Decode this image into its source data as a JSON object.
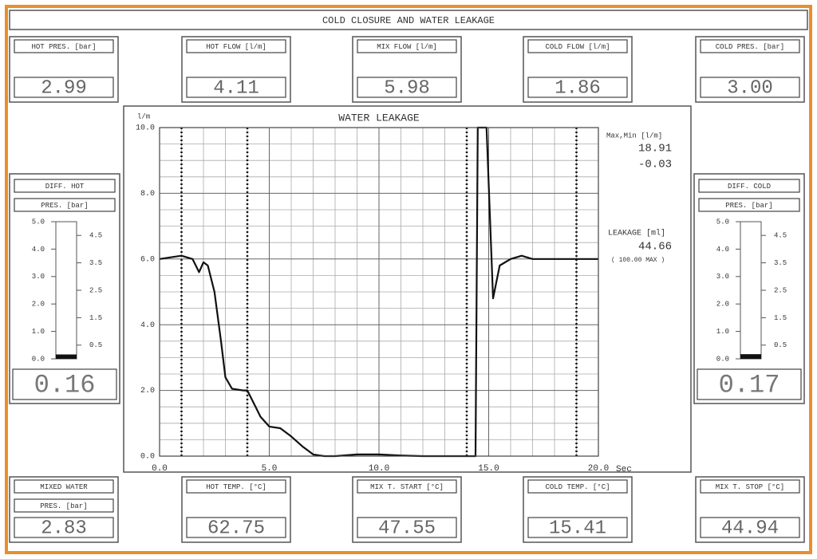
{
  "header": {
    "title": "COLD CLOSURE AND WATER LEAKAGE"
  },
  "top_readouts": [
    {
      "labels": [
        "HOT PRES. [bar]"
      ],
      "value": "2.99"
    },
    {
      "labels": [
        "HOT FLOW [l/m]"
      ],
      "value": "4.11"
    },
    {
      "labels": [
        "MIX FLOW [l/m]"
      ],
      "value": "5.98"
    },
    {
      "labels": [
        "COLD FLOW [l/m]"
      ],
      "value": "1.86"
    },
    {
      "labels": [
        "COLD PRES. [bar]"
      ],
      "value": "3.00"
    }
  ],
  "bottom_readouts": [
    {
      "labels": [
        "MIXED WATER",
        "PRES. [bar]"
      ],
      "value": "2.83"
    },
    {
      "labels": [
        "HOT TEMP. [°C]"
      ],
      "value": "62.75"
    },
    {
      "labels": [
        "MIX T. START [°C]"
      ],
      "value": "47.55"
    },
    {
      "labels": [
        "COLD TEMP. [°C]"
      ],
      "value": "15.41"
    },
    {
      "labels": [
        "MIX T. STOP [°C]"
      ],
      "value": "44.94"
    }
  ],
  "gauges": [
    {
      "labels": [
        "DIFF. HOT",
        "PRES. [bar]"
      ],
      "level": 0.16,
      "value": "0.16",
      "ylim": [
        0,
        5
      ],
      "yticks": [
        {
          "value": 0,
          "label": "0.0"
        },
        {
          "value": 1,
          "label": "1.0"
        },
        {
          "value": 2,
          "label": "2.0"
        },
        {
          "value": 3,
          "label": "3.0"
        },
        {
          "value": 4,
          "label": "4.0"
        },
        {
          "value": 5,
          "label": "5.0"
        }
      ],
      "y2ticks": [
        0.5,
        1.5,
        2.5,
        3.5,
        4.5
      ]
    },
    {
      "labels": [
        "DIFF. COLD",
        "PRES. [bar]"
      ],
      "level": 0.17,
      "value": "0.17",
      "ylim": [
        0,
        5
      ],
      "yticks": [
        {
          "value": 0,
          "label": "0.0"
        },
        {
          "value": 1,
          "label": "1.0"
        },
        {
          "value": 2,
          "label": "2.0"
        },
        {
          "value": 3,
          "label": "3.0"
        },
        {
          "value": 4,
          "label": "4.0"
        },
        {
          "value": 5,
          "label": "5.0"
        }
      ],
      "y2ticks": [
        0.5,
        1.5,
        2.5,
        3.5,
        4.5
      ]
    }
  ],
  "chart_data": {
    "type": "line",
    "title": "WATER LEAKAGE",
    "x_label": "Sec",
    "y_label": "l/m",
    "xlim": [
      0,
      20
    ],
    "ylim": [
      0,
      10
    ],
    "xticks": [
      {
        "value": 0,
        "label": "0.0"
      },
      {
        "value": 5,
        "label": "5.0"
      },
      {
        "value": 10,
        "label": "10.0"
      },
      {
        "value": 15,
        "label": "15.0"
      },
      {
        "value": 20,
        "label": "20.0"
      }
    ],
    "yticks": [
      {
        "value": 0,
        "label": "0.0"
      },
      {
        "value": 2,
        "label": "2.0"
      },
      {
        "value": 4,
        "label": "4.0"
      },
      {
        "value": 6,
        "label": "6.0"
      },
      {
        "value": 8,
        "label": "8.0"
      },
      {
        "value": 10,
        "label": "10.0"
      }
    ],
    "xgrid": [
      1,
      2,
      3,
      4,
      6,
      7,
      8,
      9,
      11,
      12,
      13,
      14,
      16,
      17,
      18,
      19
    ],
    "ygrid": [
      0.5,
      1,
      1.5,
      2.5,
      3,
      3.5,
      4.5,
      5,
      5.5,
      6.5,
      7,
      7.5,
      8.5,
      9,
      9.5
    ],
    "markers": [
      1,
      4,
      14,
      19
    ],
    "x": [
      0,
      0.5,
      1,
      1.5,
      1.8,
      2,
      2.2,
      2.5,
      2.8,
      3,
      3.3,
      3.8,
      4,
      4.3,
      4.6,
      5,
      5.5,
      6,
      6.5,
      7,
      7.5,
      8,
      9,
      10,
      11,
      12,
      13,
      14,
      14.4,
      14.5,
      14.9,
      15.2,
      15.5,
      16,
      16.5,
      17,
      18,
      19,
      20
    ],
    "series": [
      {
        "name": "Water leakage",
        "color": "#111111",
        "values": [
          6.0,
          6.05,
          6.1,
          6.0,
          5.6,
          5.9,
          5.8,
          5.0,
          3.5,
          2.4,
          2.05,
          2.0,
          2.0,
          1.6,
          1.2,
          0.9,
          0.85,
          0.6,
          0.3,
          0.05,
          0,
          0,
          0.05,
          0.05,
          0.02,
          0,
          0,
          0,
          0,
          10,
          10,
          4.8,
          5.8,
          6.0,
          6.1,
          6.0,
          6.0,
          6.0,
          6.0
        ]
      }
    ],
    "grid": true
  },
  "notes": {
    "maxmin_label": "Max,Min [l/m]",
    "max": "18.91",
    "min": "-0.03",
    "leakage_label": "LEAKAGE [ml]",
    "leakage": "44.66",
    "leakage_limit": "( 100.00 MAX )"
  }
}
